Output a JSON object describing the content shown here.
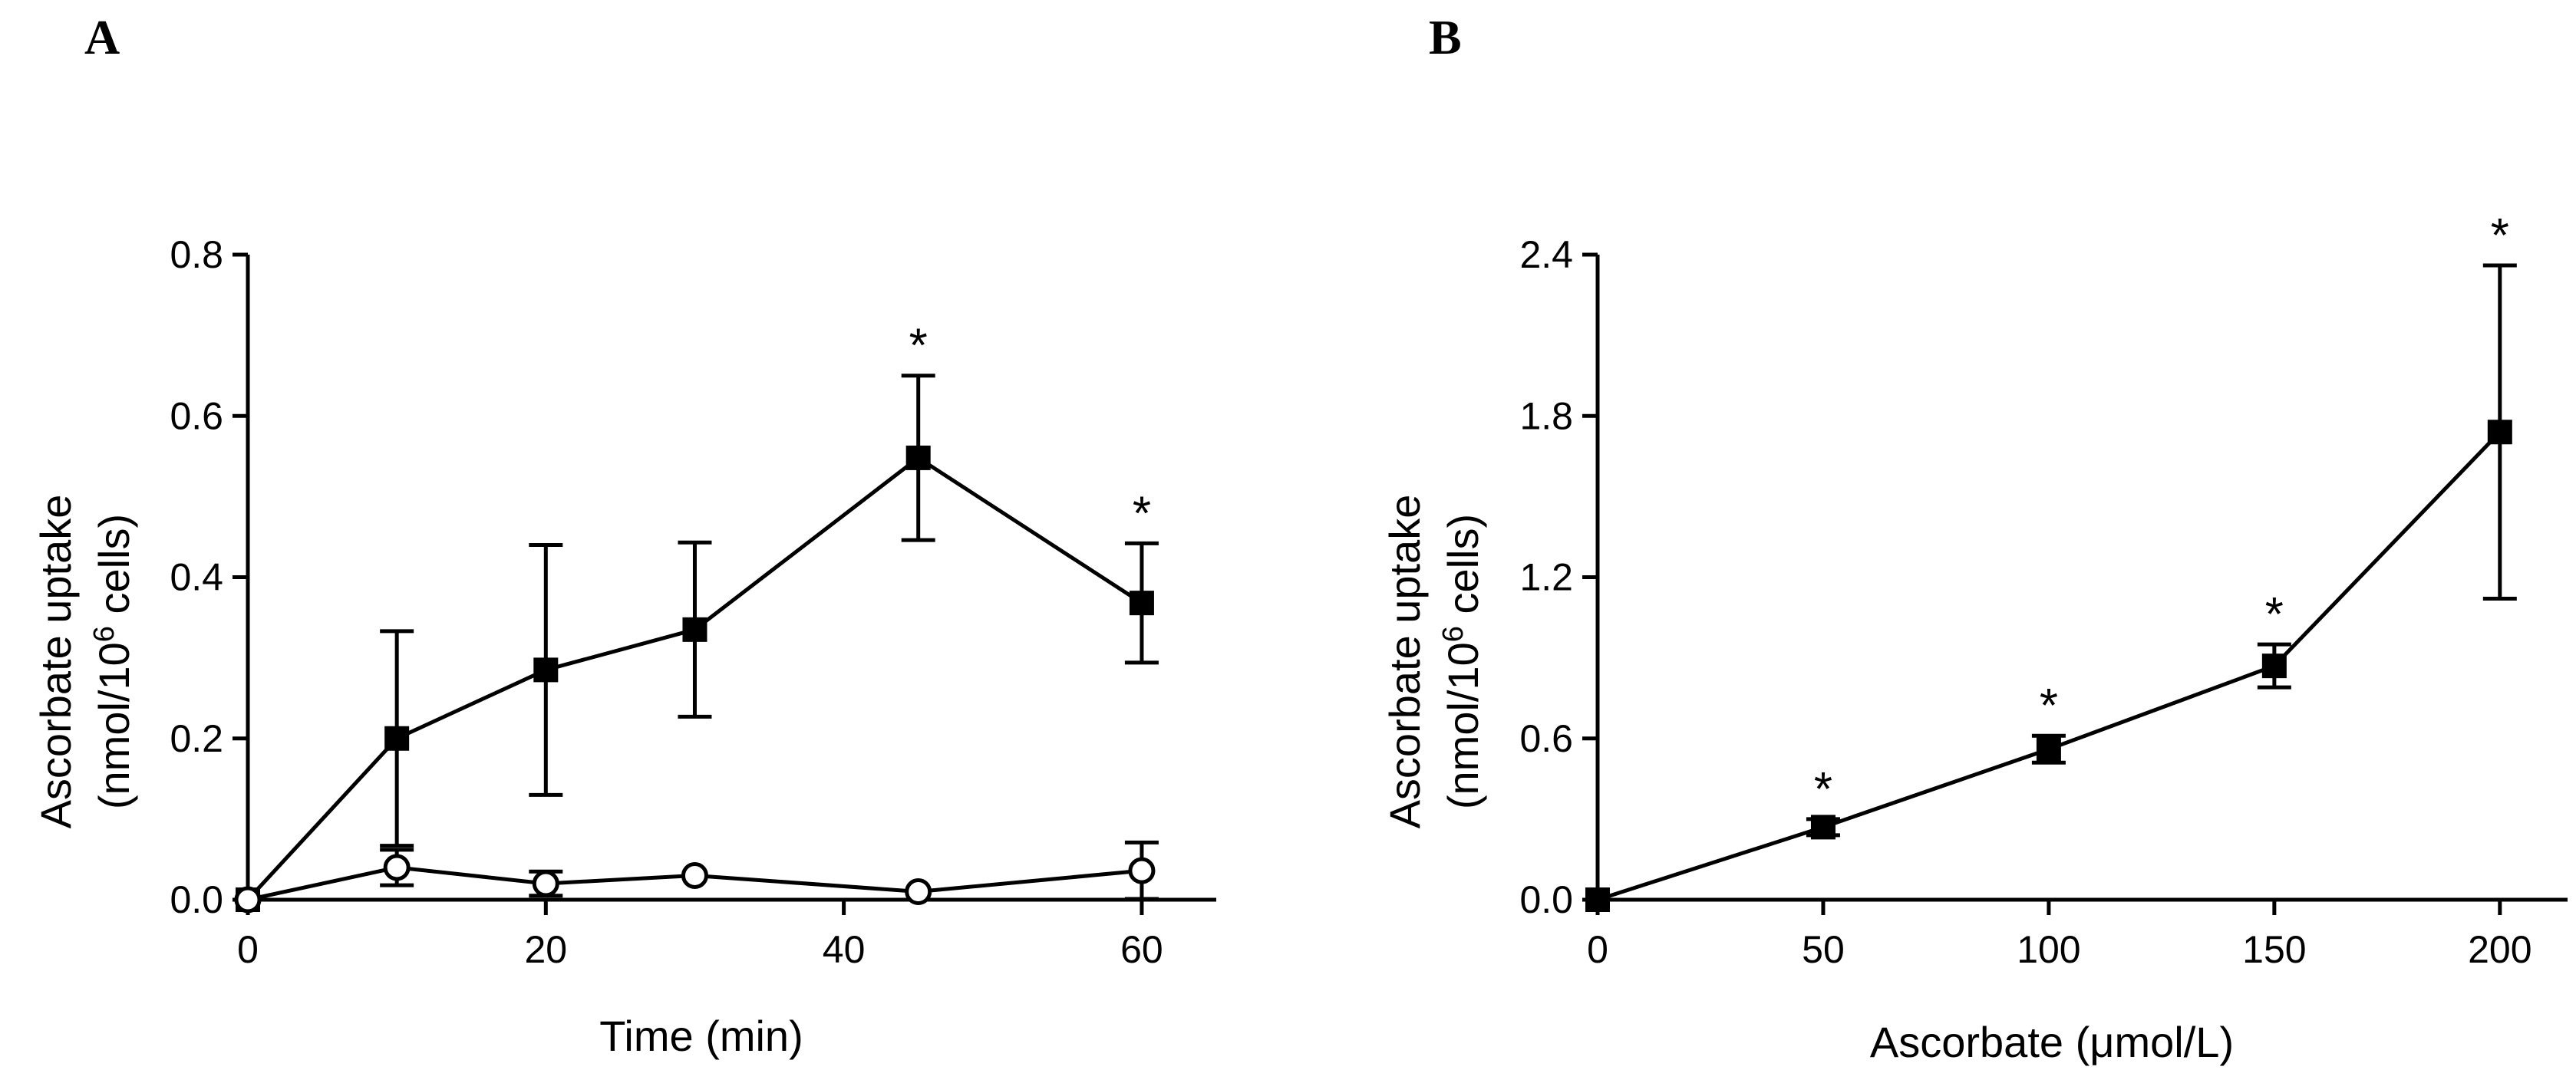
{
  "panel_labels": [
    "A",
    "B"
  ],
  "chart_data": [
    {
      "type": "line",
      "panel": "A",
      "title": "",
      "xlabel": "Time (min)",
      "ylabel_line1": "Ascorbate uptake",
      "ylabel_line2_prefix": "(nmol/10",
      "ylabel_line2_sup": "6",
      "ylabel_line2_suffix": " cells)",
      "xlim": [
        0,
        65
      ],
      "ylim": [
        0,
        0.8
      ],
      "xticks": [
        0,
        20,
        40,
        60
      ],
      "xtick_labels": [
        "0",
        "20",
        "40",
        "60"
      ],
      "yticks": [
        0,
        0.2,
        0.4,
        0.6,
        0.8
      ],
      "ytick_labels": [
        "0.0",
        "0.2",
        "0.4",
        "0.6",
        "0.8"
      ],
      "series": [
        {
          "name": "filled squares",
          "marker": "square-filled",
          "x": [
            0,
            10,
            20,
            30,
            45,
            60
          ],
          "y": [
            0,
            0.2,
            0.285,
            0.335,
            0.548,
            0.368
          ],
          "err": [
            0,
            0.133,
            0.155,
            0.108,
            0.102,
            0.074
          ],
          "annotations": [
            "",
            "",
            "",
            "",
            "*",
            "*"
          ]
        },
        {
          "name": "open circles",
          "marker": "circle-open",
          "x": [
            0,
            10,
            20,
            30,
            45,
            60
          ],
          "y": [
            0,
            0.04,
            0.02,
            0.03,
            0.01,
            0.036
          ],
          "err": [
            0,
            0.022,
            0.015,
            0.0,
            0.0,
            0.035
          ],
          "annotations": [
            "",
            "",
            "",
            "",
            "",
            ""
          ]
        }
      ]
    },
    {
      "type": "line",
      "panel": "B",
      "title": "",
      "xlabel": "Ascorbate (μmol/L)",
      "ylabel_line1": "Ascorbate uptake",
      "ylabel_line2_prefix": "(nmol/10",
      "ylabel_line2_sup": "6",
      "ylabel_line2_suffix": " cells)",
      "xlim": [
        0,
        215
      ],
      "ylim": [
        0,
        2.4
      ],
      "xticks": [
        0,
        50,
        100,
        150,
        200
      ],
      "xtick_labels": [
        "0",
        "50",
        "100",
        "150",
        "200"
      ],
      "yticks": [
        0,
        0.6,
        1.2,
        1.8,
        2.4
      ],
      "ytick_labels": [
        "0.0",
        "0.6",
        "1.2",
        "1.8",
        "2.4"
      ],
      "series": [
        {
          "name": "filled squares",
          "marker": "square-filled",
          "x": [
            0,
            50,
            100,
            150,
            200
          ],
          "y": [
            0,
            0.27,
            0.56,
            0.87,
            1.74
          ],
          "err": [
            0,
            0.03,
            0.05,
            0.08,
            0.62
          ],
          "annotations": [
            "",
            "*",
            "*",
            "*",
            "*"
          ]
        }
      ]
    }
  ]
}
